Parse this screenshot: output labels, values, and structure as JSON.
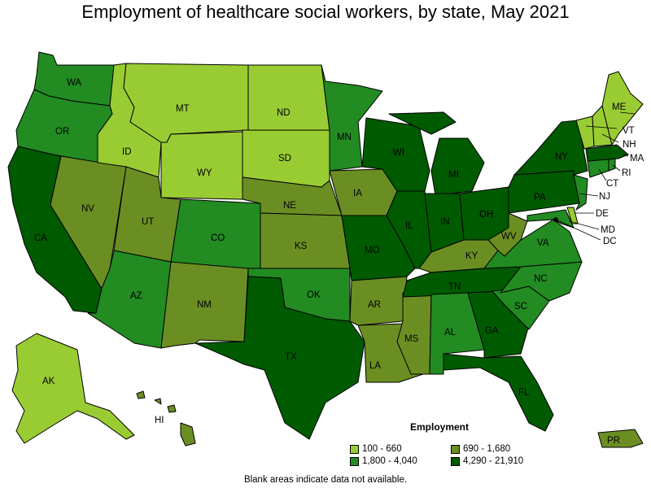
{
  "title": "Employment of healthcare social workers, by state, May 2021",
  "legend": {
    "title": "Employment",
    "items": [
      {
        "label": "100 - 660",
        "color": "#99cc33"
      },
      {
        "label": "690 - 1,680",
        "color": "#6b8e23"
      },
      {
        "label": "1,800 - 4,040",
        "color": "#228b22"
      },
      {
        "label": "4,290 - 21,910",
        "color": "#005a00"
      }
    ]
  },
  "footnote": "Blank areas indicate data not available.",
  "states": {
    "WA": {
      "label": "WA",
      "bin": 2
    },
    "OR": {
      "label": "OR",
      "bin": 2
    },
    "CA": {
      "label": "CA",
      "bin": 3
    },
    "NV": {
      "label": "NV",
      "bin": 1
    },
    "ID": {
      "label": "ID",
      "bin": 0
    },
    "MT": {
      "label": "MT",
      "bin": 0
    },
    "WY": {
      "label": "WY",
      "bin": 0
    },
    "UT": {
      "label": "UT",
      "bin": 1
    },
    "AZ": {
      "label": "AZ",
      "bin": 2
    },
    "CO": {
      "label": "CO",
      "bin": 2
    },
    "NM": {
      "label": "NM",
      "bin": 1
    },
    "ND": {
      "label": "ND",
      "bin": 0
    },
    "SD": {
      "label": "SD",
      "bin": 0
    },
    "NE": {
      "label": "NE",
      "bin": 1
    },
    "KS": {
      "label": "KS",
      "bin": 1
    },
    "OK": {
      "label": "OK",
      "bin": 2
    },
    "TX": {
      "label": "TX",
      "bin": 3
    },
    "MN": {
      "label": "MN",
      "bin": 2
    },
    "IA": {
      "label": "IA",
      "bin": 1
    },
    "MO": {
      "label": "MO",
      "bin": 3
    },
    "AR": {
      "label": "AR",
      "bin": 1
    },
    "LA": {
      "label": "LA",
      "bin": 1
    },
    "WI": {
      "label": "WI",
      "bin": 3
    },
    "IL": {
      "label": "IL",
      "bin": 3
    },
    "MS": {
      "label": "MS",
      "bin": 1
    },
    "MI": {
      "label": "MI",
      "bin": 3
    },
    "IN": {
      "label": "IN",
      "bin": 3
    },
    "KY": {
      "label": "KY",
      "bin": 1
    },
    "TN": {
      "label": "TN",
      "bin": 3
    },
    "AL": {
      "label": "AL",
      "bin": 2
    },
    "OH": {
      "label": "OH",
      "bin": 3
    },
    "WV": {
      "label": "WV",
      "bin": 1
    },
    "GA": {
      "label": "GA",
      "bin": 3
    },
    "FL": {
      "label": "FL",
      "bin": 3
    },
    "SC": {
      "label": "SC",
      "bin": 2
    },
    "NC": {
      "label": "NC",
      "bin": 2
    },
    "VA": {
      "label": "VA",
      "bin": 2
    },
    "PA": {
      "label": "PA",
      "bin": 3
    },
    "NY": {
      "label": "NY",
      "bin": 3
    },
    "ME": {
      "label": "ME",
      "bin": 0
    },
    "VT": {
      "label": "VT",
      "bin": 0
    },
    "NH": {
      "label": "NH",
      "bin": 0
    },
    "MA": {
      "label": "MA",
      "bin": 3
    },
    "RI": {
      "label": "RI",
      "bin": 2
    },
    "CT": {
      "label": "CT",
      "bin": 2
    },
    "NJ": {
      "label": "NJ",
      "bin": 2
    },
    "DE": {
      "label": "DE",
      "bin": 0
    },
    "MD": {
      "label": "MD",
      "bin": 2
    },
    "DC": {
      "label": "DC",
      "bin": 2
    },
    "AK": {
      "label": "AK",
      "bin": 0
    },
    "HI": {
      "label": "HI",
      "bin": 1
    },
    "PR": {
      "label": "PR",
      "bin": 1
    }
  }
}
